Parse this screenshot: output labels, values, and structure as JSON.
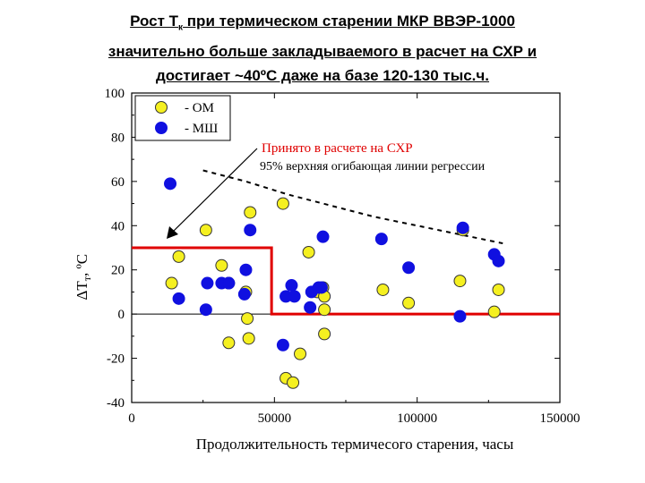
{
  "title": {
    "line1_prefix": "Рост Т",
    "line1_sub": "к",
    "line1_suffix": " при термическом старении МКР ВВЭР-1000",
    "line2": "значительно больше закладываемого в расчет на СХР и",
    "line3": "достигает ~40ºС даже на базе 120-130 тыс.ч."
  },
  "colors": {
    "om_fill": "#f5f020",
    "msh_fill": "#1010e0",
    "limit_line": "#e00000",
    "envelope_line": "#000000"
  },
  "chart_data": {
    "type": "scatter",
    "title": "",
    "xlabel": "Продолжительность термичесого старения, часы",
    "ylabel_main": "ΔT",
    "ylabel_sub": "т",
    "ylabel_unit": ",   ºC",
    "xlim": [
      0,
      150000
    ],
    "ylim": [
      -40,
      100
    ],
    "xticks": [
      0,
      50000,
      100000,
      150000
    ],
    "xtick_labels": [
      "0",
      "50000",
      "100000",
      "150000"
    ],
    "yticks": [
      -40,
      -20,
      0,
      20,
      40,
      60,
      80,
      100
    ],
    "ytick_labels": [
      "-40",
      "-20",
      "0",
      "20",
      "40",
      "60",
      "80",
      "100"
    ],
    "legend": {
      "position": "top-left",
      "entries": [
        "- ОМ",
        "- МШ"
      ]
    },
    "series": [
      {
        "name": "- ОМ",
        "marker": "circle-yellow",
        "points": [
          [
            14000,
            14
          ],
          [
            16500,
            26
          ],
          [
            26000,
            38
          ],
          [
            31500,
            22
          ],
          [
            34000,
            14
          ],
          [
            34000,
            -13
          ],
          [
            40000,
            10
          ],
          [
            40500,
            -2
          ],
          [
            41000,
            -11
          ],
          [
            41500,
            46
          ],
          [
            53000,
            50
          ],
          [
            54000,
            -29
          ],
          [
            56500,
            -31
          ],
          [
            59000,
            -18
          ],
          [
            62000,
            28
          ],
          [
            65000,
            10
          ],
          [
            67000,
            12
          ],
          [
            67500,
            8
          ],
          [
            67500,
            2
          ],
          [
            67500,
            -9
          ],
          [
            88000,
            11
          ],
          [
            97000,
            5
          ],
          [
            115000,
            15
          ],
          [
            116000,
            38
          ],
          [
            127000,
            1
          ],
          [
            128500,
            11
          ]
        ]
      },
      {
        "name": "- МШ",
        "marker": "circle-blue",
        "points": [
          [
            13500,
            59
          ],
          [
            16500,
            7
          ],
          [
            26000,
            2
          ],
          [
            26500,
            14
          ],
          [
            31500,
            14
          ],
          [
            34000,
            14
          ],
          [
            39500,
            9
          ],
          [
            40000,
            20
          ],
          [
            41500,
            38
          ],
          [
            53000,
            -14
          ],
          [
            54000,
            8
          ],
          [
            56000,
            13
          ],
          [
            57000,
            8
          ],
          [
            62500,
            3
          ],
          [
            63000,
            10
          ],
          [
            65500,
            12
          ],
          [
            66500,
            12
          ],
          [
            67000,
            35
          ],
          [
            87500,
            34
          ],
          [
            97000,
            21
          ],
          [
            115000,
            -1
          ],
          [
            116000,
            39
          ],
          [
            127000,
            27
          ],
          [
            128500,
            24
          ]
        ]
      }
    ],
    "limit_line": {
      "name": "Принято в расчете на СХР",
      "points": [
        [
          0,
          30
        ],
        [
          49000,
          30
        ],
        [
          49000,
          0
        ],
        [
          150000,
          0
        ]
      ]
    },
    "envelope": {
      "name": "95% верхняя огибающая линии регрессии",
      "points": [
        [
          25000,
          65
        ],
        [
          40000,
          60
        ],
        [
          55000,
          54
        ],
        [
          70000,
          49
        ],
        [
          85000,
          44
        ],
        [
          100000,
          40
        ],
        [
          115000,
          36
        ],
        [
          130000,
          32
        ]
      ]
    },
    "annotations": [
      "Принято в расчете на СХР",
      "95% верхняя огибающая линии регрессии"
    ]
  }
}
